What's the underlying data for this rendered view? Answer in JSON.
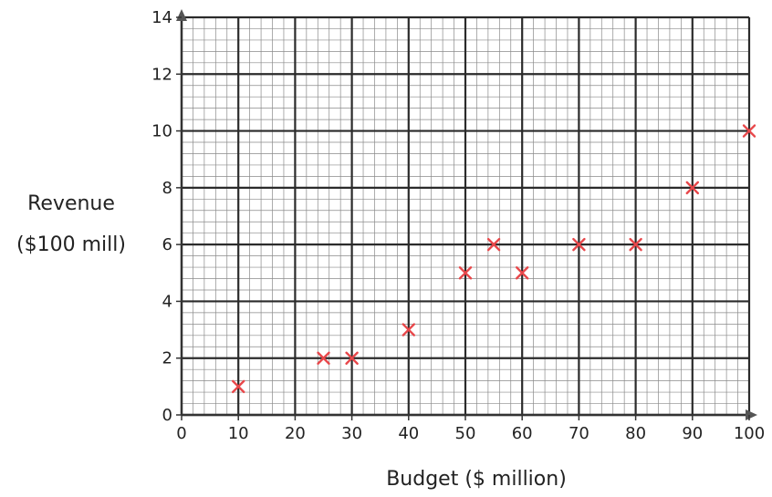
{
  "chart_data": {
    "type": "scatter",
    "title": "",
    "xlabel": "Budget ($ million)",
    "ylabel_lines": [
      "Revenue",
      "($100 mill)"
    ],
    "xlim": [
      0,
      100
    ],
    "ylim": [
      0,
      14
    ],
    "x_ticks": [
      0,
      10,
      20,
      30,
      40,
      50,
      60,
      70,
      80,
      90,
      100
    ],
    "y_ticks": [
      0,
      2,
      4,
      6,
      8,
      10,
      12,
      14
    ],
    "grid": true,
    "marker": "x",
    "marker_color": "#e8474a",
    "points": [
      {
        "x": 10,
        "y": 1
      },
      {
        "x": 25,
        "y": 2
      },
      {
        "x": 30,
        "y": 2
      },
      {
        "x": 40,
        "y": 3
      },
      {
        "x": 50,
        "y": 5
      },
      {
        "x": 55,
        "y": 6
      },
      {
        "x": 60,
        "y": 5
      },
      {
        "x": 70,
        "y": 6
      },
      {
        "x": 80,
        "y": 6
      },
      {
        "x": 90,
        "y": 8
      },
      {
        "x": 100,
        "y": 10
      }
    ]
  }
}
